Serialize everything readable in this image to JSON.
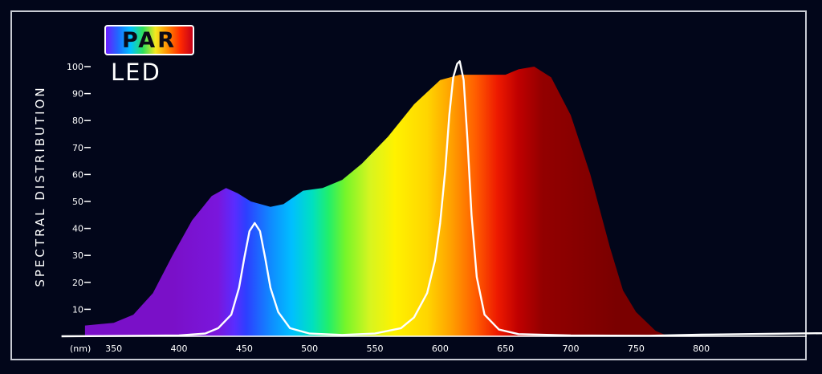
{
  "badge": {
    "par_label": "PAR",
    "led_label": "LED"
  },
  "chart_data": {
    "type": "area",
    "title": "",
    "ylabel": "SPECTRAL DISTRIBUTION",
    "xunit_label": "(nm)",
    "xlim": [
      310,
      900
    ],
    "ylim": [
      0,
      100
    ],
    "yticks": [
      10,
      20,
      30,
      40,
      50,
      60,
      70,
      80,
      90,
      100
    ],
    "xticks": [
      350,
      400,
      450,
      500,
      550,
      600,
      650,
      700,
      750,
      800
    ],
    "series": [
      {
        "kind": "filled-spectrum",
        "x": [
          328,
          350,
          365,
          380,
          395,
          410,
          425,
          436,
          445,
          455,
          470,
          480,
          495,
          510,
          525,
          540,
          560,
          580,
          600,
          615,
          630,
          650,
          660,
          672,
          685,
          700,
          715,
          730,
          740,
          750,
          765,
          775
        ],
        "y": [
          4,
          5,
          8,
          16,
          30,
          43,
          52,
          55,
          53,
          50,
          48,
          49,
          54,
          55,
          58,
          64,
          74,
          86,
          95,
          97,
          97,
          97,
          99,
          100,
          96,
          82,
          60,
          33,
          17,
          9,
          2,
          0
        ]
      },
      {
        "kind": "white-line",
        "x": [
          310,
          400,
          420,
          430,
          440,
          446,
          450,
          454,
          458,
          462,
          466,
          470,
          476,
          485,
          500,
          525,
          550,
          570,
          580,
          590,
          596,
          600,
          604,
          607,
          610,
          613,
          615,
          618,
          621,
          624,
          628,
          634,
          645,
          660,
          700,
          760,
          800,
          850,
          900
        ],
        "y": [
          0,
          0.3,
          1,
          3,
          8,
          18,
          29,
          39,
          42,
          39,
          29,
          18,
          9,
          3,
          1,
          0.5,
          1,
          3,
          7,
          16,
          28,
          42,
          62,
          82,
          96,
          101,
          102,
          95,
          72,
          45,
          22,
          8,
          2.5,
          0.8,
          0.3,
          0.2,
          0.6,
          0.9,
          1.2
        ]
      }
    ],
    "colors": {
      "background": "#02061a",
      "axis": "#ffffff",
      "line": "#ffffff"
    }
  }
}
